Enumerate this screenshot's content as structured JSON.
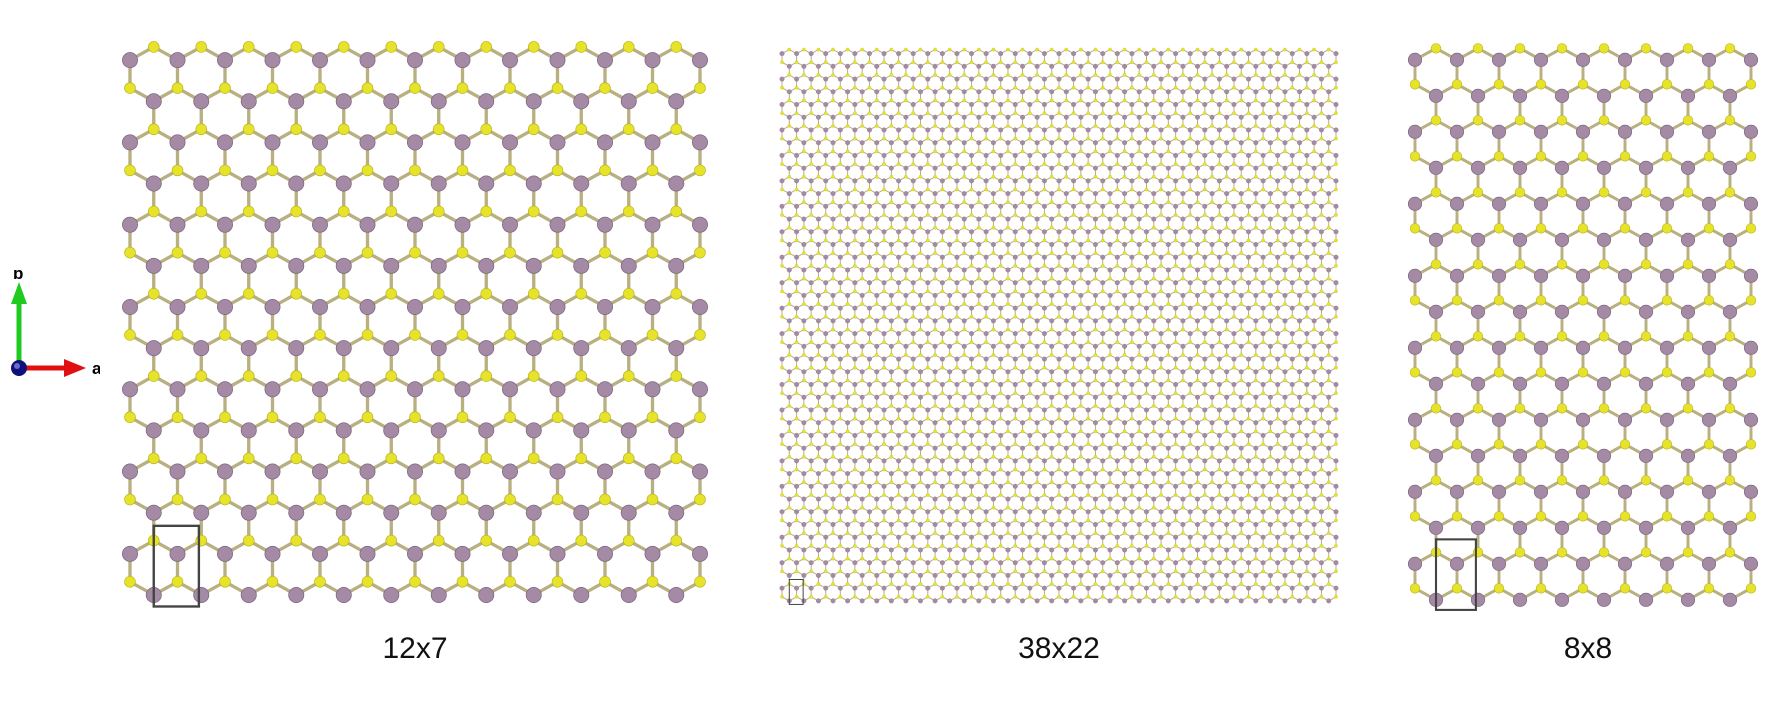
{
  "axes": {
    "b_label": "b",
    "a_label": "a"
  },
  "colors": {
    "metal_atom": "#A58AA6",
    "chalcogen_atom": "#E6E32A",
    "bond": "#B8B080",
    "cell_box": "#444444",
    "a_axis": "#E01010",
    "b_axis": "#1FCB1F",
    "c_axis": "#10107A"
  },
  "panels": [
    {
      "label": "12x7",
      "supercell": [
        12,
        7
      ]
    },
    {
      "label": "38x22",
      "supercell": [
        38,
        22
      ]
    },
    {
      "label": "8x8",
      "supercell": [
        8,
        8
      ]
    }
  ]
}
